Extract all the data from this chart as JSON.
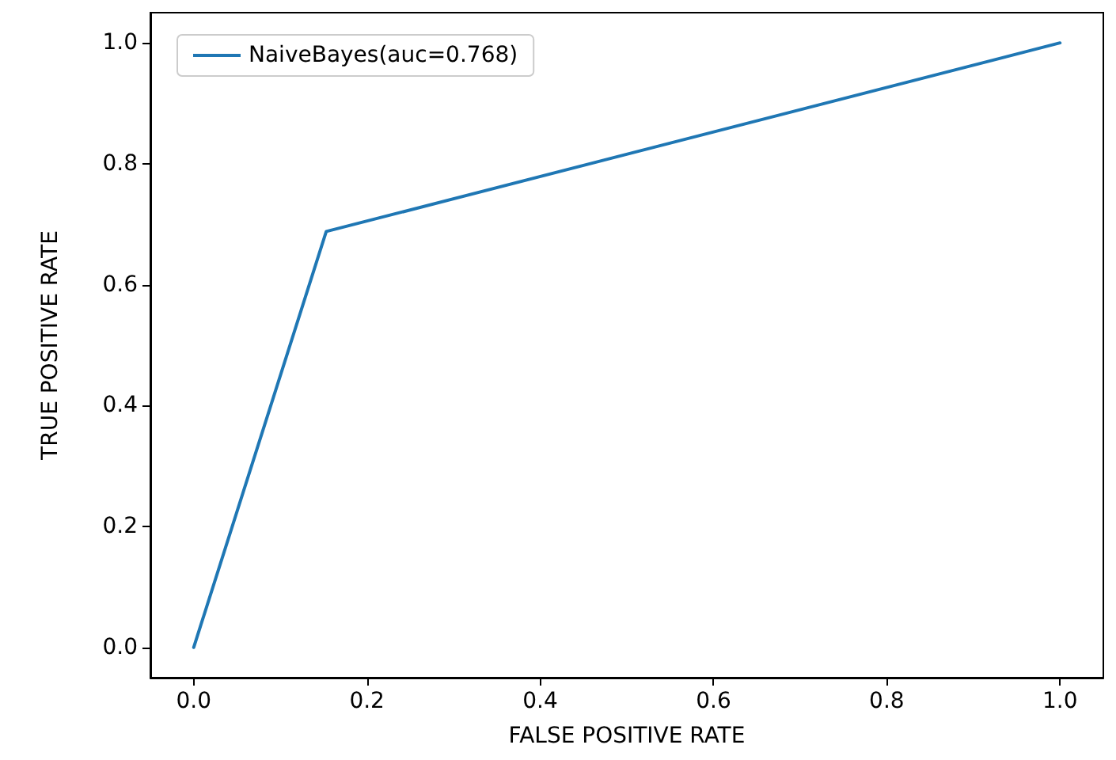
{
  "chart_data": {
    "type": "line",
    "xlabel": "FALSE POSITIVE RATE",
    "ylabel": "TRUE POSITIVE RATE",
    "x": [
      0,
      0.153,
      1
    ],
    "series": [
      {
        "name": "NaiveBayes(auc=0.768)",
        "color": "#1f77b4",
        "values": [
          0,
          0.688,
          1
        ]
      }
    ],
    "xlim": [
      -0.05,
      1.05
    ],
    "ylim": [
      -0.05,
      1.05
    ],
    "xticks": [
      {
        "value": 0,
        "label": "0.0"
      },
      {
        "value": 0.2,
        "label": "0.2"
      },
      {
        "value": 0.4,
        "label": "0.4"
      },
      {
        "value": 0.6,
        "label": "0.6"
      },
      {
        "value": 0.8,
        "label": "0.8"
      },
      {
        "value": 1,
        "label": "1.0"
      }
    ],
    "yticks": [
      {
        "value": 0,
        "label": "0.0"
      },
      {
        "value": 0.2,
        "label": "0.2"
      },
      {
        "value": 0.4,
        "label": "0.4"
      },
      {
        "value": 0.6,
        "label": "0.6"
      },
      {
        "value": 0.8,
        "label": "0.8"
      },
      {
        "value": 1,
        "label": "1.0"
      }
    ],
    "grid": false,
    "legend": "top left",
    "marker": "none",
    "line_style": "solid"
  }
}
